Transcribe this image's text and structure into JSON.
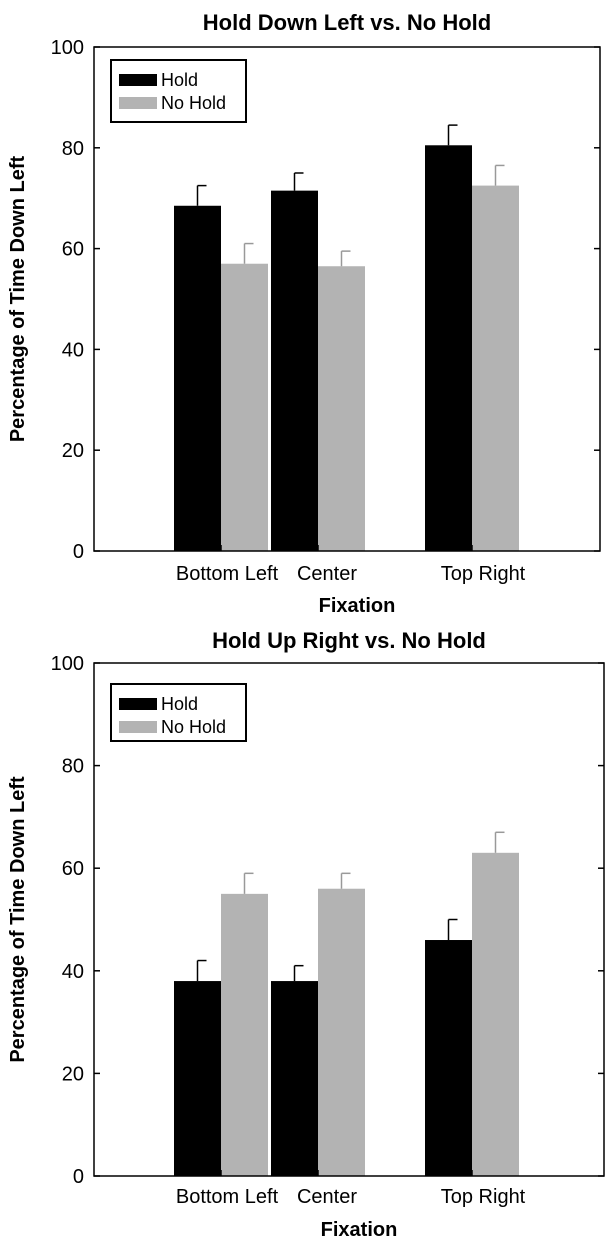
{
  "chart_data": [
    {
      "type": "bar",
      "title": "Hold Down Left vs. No Hold",
      "xlabel": "Fixation",
      "ylabel": "Percentage of Time Down Left",
      "categories": [
        "Bottom Left",
        "Center",
        "Top Right"
      ],
      "ylim": [
        0,
        100
      ],
      "yticks": [
        "0",
        "20",
        "40",
        "60",
        "80",
        "100"
      ],
      "grid": false,
      "legend_position": "top-left",
      "series": [
        {
          "name": "Hold",
          "color": "#000000",
          "values": [
            68.5,
            71.5,
            80.5
          ],
          "errors": [
            4,
            3.5,
            4
          ]
        },
        {
          "name": "No Hold",
          "color": "#b3b3b3",
          "values": [
            57,
            56.5,
            72.5
          ],
          "errors": [
            4,
            3,
            4
          ]
        }
      ]
    },
    {
      "type": "bar",
      "title": "Hold Up Right vs. No Hold",
      "xlabel": "Fixation",
      "ylabel": "Percentage of Time Down Left",
      "categories": [
        "Bottom Left",
        "Center",
        "Top Right"
      ],
      "ylim": [
        0,
        100
      ],
      "yticks": [
        "0",
        "20",
        "40",
        "60",
        "80",
        "100"
      ],
      "grid": false,
      "legend_position": "top-left",
      "series": [
        {
          "name": "Hold",
          "color": "#000000",
          "values": [
            38,
            38,
            46
          ],
          "errors": [
            4,
            3,
            4
          ]
        },
        {
          "name": "No Hold",
          "color": "#b3b3b3",
          "values": [
            55,
            56,
            63
          ],
          "errors": [
            4,
            3,
            4
          ]
        }
      ]
    }
  ]
}
